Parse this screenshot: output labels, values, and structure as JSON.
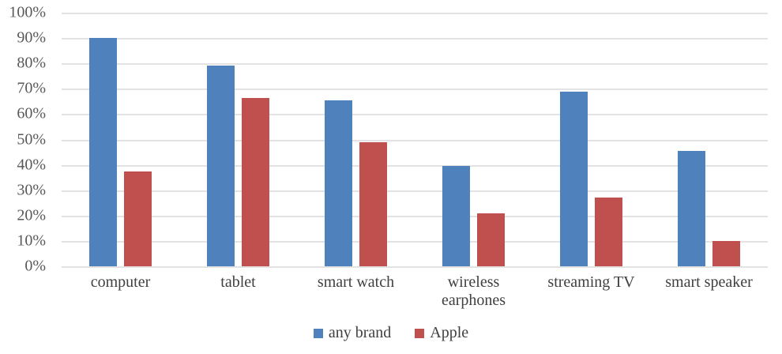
{
  "chart_data": {
    "type": "bar",
    "title": "",
    "categories": [
      "computer",
      "tablet",
      "smart watch",
      "wireless earphones",
      "streaming TV",
      "smart speaker"
    ],
    "series": [
      {
        "name": "any brand",
        "color": "#4F81BD",
        "values": [
          90,
          79,
          65.5,
          39.5,
          69,
          45.5
        ]
      },
      {
        "name": "Apple",
        "color": "#C0504D",
        "values": [
          37.5,
          66.5,
          49,
          21,
          27,
          10
        ]
      }
    ],
    "xlabel": "",
    "ylabel": "",
    "ylim": [
      0,
      100
    ],
    "y_tick_step": 10,
    "y_ticks": [
      "0%",
      "10%",
      "20%",
      "30%",
      "40%",
      "50%",
      "60%",
      "70%",
      "80%",
      "90%",
      "100%"
    ],
    "grid": true,
    "gridline_color": "#e3e3e3",
    "legend_position": "bottom",
    "axis_label_color": "#595959",
    "category_label_color": "#404040"
  }
}
